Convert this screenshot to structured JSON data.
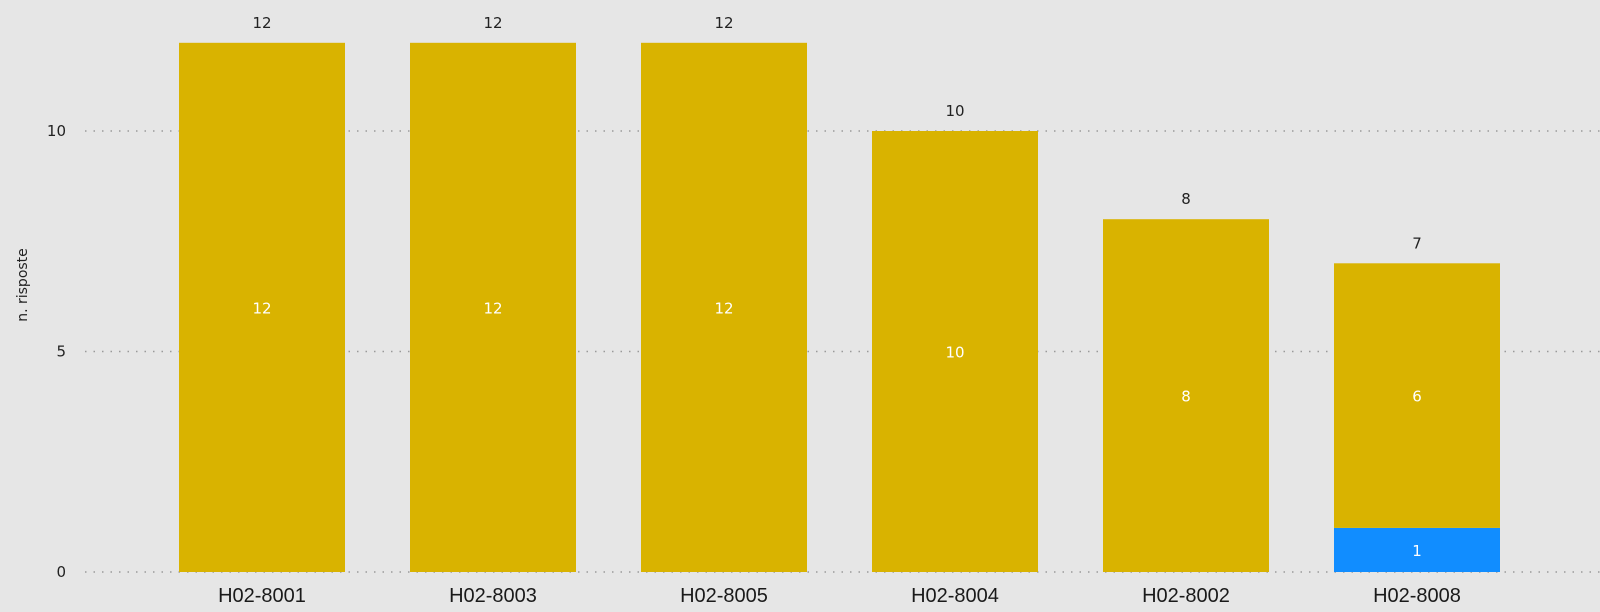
{
  "chart_data": {
    "type": "bar",
    "stacked": true,
    "ylabel": "n. risposte",
    "xlabel": "",
    "ylim": [
      0,
      12
    ],
    "yticks": [
      0,
      5,
      10
    ],
    "grid": "horizontal-dotted",
    "categories": [
      "H02-8001",
      "H02-8003",
      "H02-8005",
      "H02-8004",
      "H02-8002",
      "H02-8008"
    ],
    "series": [
      {
        "color": "#118dff",
        "values": [
          0,
          0,
          0,
          0,
          0,
          1
        ]
      },
      {
        "color": "#d9b300",
        "values": [
          12,
          12,
          12,
          10,
          8,
          6
        ]
      }
    ],
    "totals": [
      12,
      12,
      12,
      10,
      8,
      7
    ],
    "background": "#e6e6e6"
  }
}
